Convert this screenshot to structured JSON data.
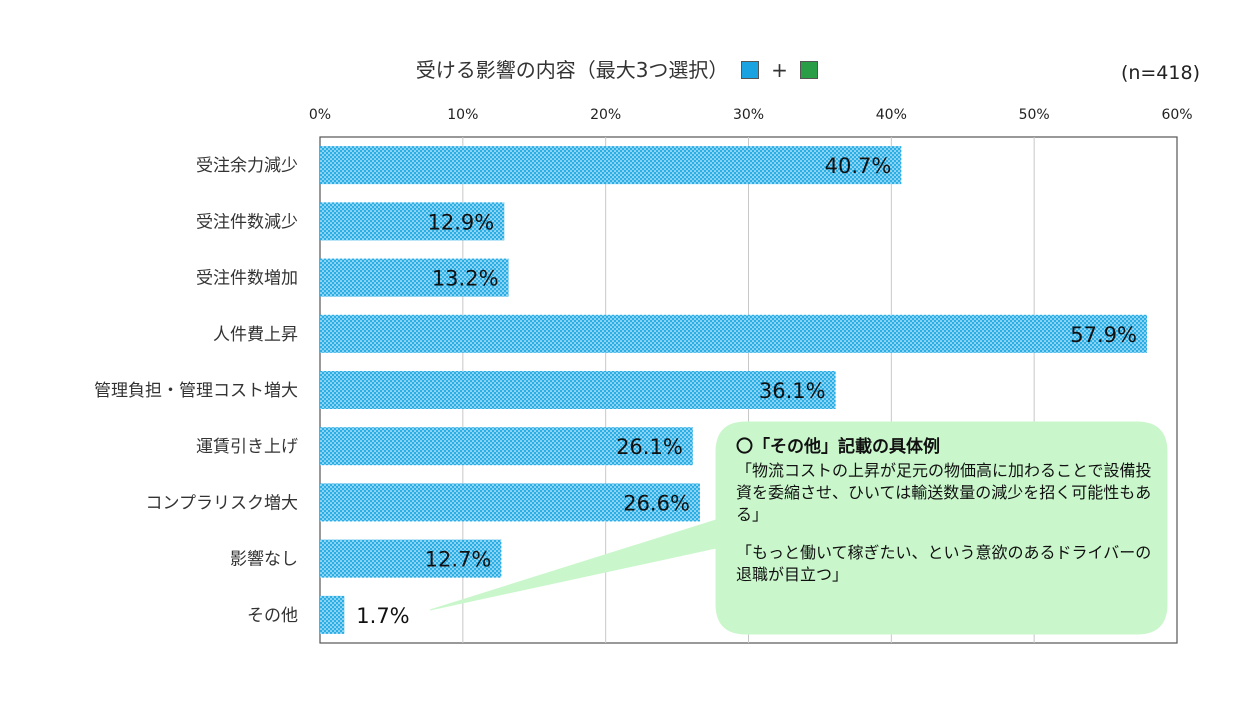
{
  "title": {
    "text": "受ける影響の内容（最大3つ選択）",
    "plus": "+",
    "swatch1": "#1aa3e0",
    "swatch2": "#2a9d47"
  },
  "sample_size": "(n=418)",
  "colors": {
    "bar": "#29aee6",
    "bar_dot": "#ffffff",
    "callout_bg": "#c9f7cb",
    "grid": "#c8c8c8"
  },
  "chart_data": {
    "type": "bar",
    "orientation": "horizontal",
    "categories": [
      "受注余力減少",
      "受注件数減少",
      "受注件数増加",
      "人件費上昇",
      "管理負担・管理コスト増大",
      "運賃引き上げ",
      "コンプラリスク増大",
      "影響なし",
      "その他"
    ],
    "values": [
      40.7,
      12.9,
      13.2,
      57.9,
      36.1,
      26.1,
      26.6,
      12.7,
      1.7
    ],
    "value_labels": [
      "40.7%",
      "12.9%",
      "13.2%",
      "57.9%",
      "36.1%",
      "26.1%",
      "26.6%",
      "12.7%",
      "1.7%"
    ],
    "xlim": [
      0,
      60
    ],
    "ticks": [
      0,
      10,
      20,
      30,
      40,
      50,
      60
    ],
    "tick_labels": [
      "0%",
      "10%",
      "20%",
      "30%",
      "40%",
      "50%",
      "60%"
    ],
    "grid": true,
    "axis_position": "top"
  },
  "callout": {
    "heading": "〇「その他」記載の具体例",
    "quote1": "「物流コストの上昇が足元の物価高に加わることで設備投資を委縮させ、ひいては輸送数量の減少を招く可能性もある」",
    "quote2": "「もっと働いて稼ぎたい、という意欲のあるドライバーの退職が目立つ」"
  }
}
